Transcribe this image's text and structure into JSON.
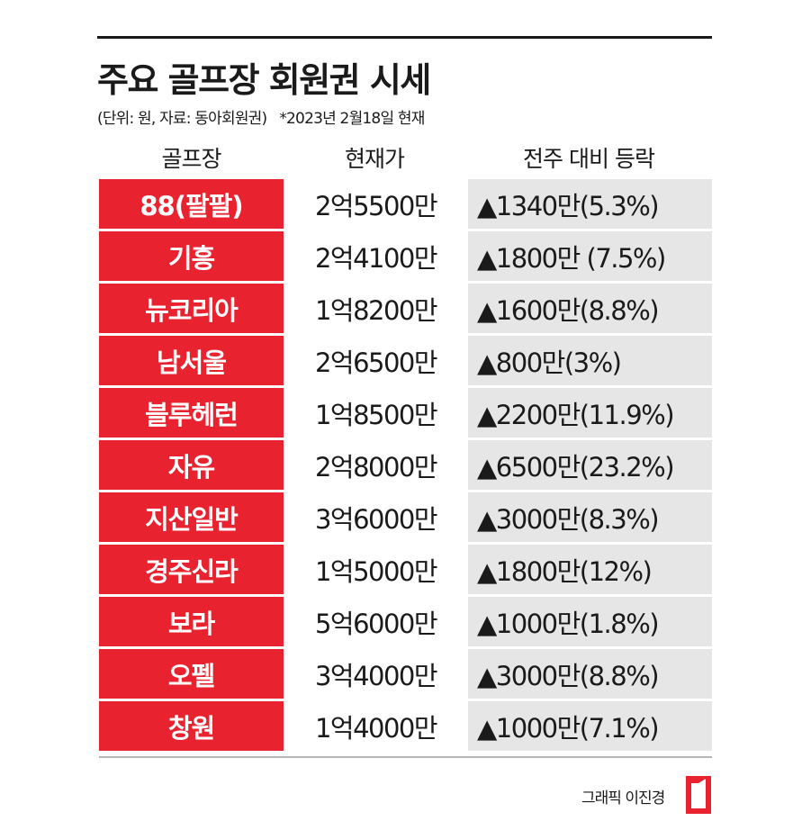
{
  "title": "주요 골프장 회원권 시세",
  "subtitle": "(단위: 원, 자료: 동아회원권)",
  "note": "*2023년 2월18일 현재",
  "headers": {
    "name": "골프장",
    "price": "현재가",
    "change": "전주 대비 등락"
  },
  "rows": [
    {
      "name": "88(팔팔)",
      "price": "2억5500만",
      "change": "▲1340만(5.3%)"
    },
    {
      "name": "기흥",
      "price": "2억4100만",
      "change": "▲1800만 (7.5%)"
    },
    {
      "name": "뉴코리아",
      "price": "1억8200만",
      "change": "▲1600만(8.8%)"
    },
    {
      "name": "남서울",
      "price": "2억6500만",
      "change": "▲800만(3%)"
    },
    {
      "name": "블루헤런",
      "price": "1억8500만",
      "change": "▲2200만(11.9%)"
    },
    {
      "name": "자유",
      "price": "2억8000만",
      "change": "▲6500만(23.2%)"
    },
    {
      "name": "지산일반",
      "price": "3억6000만",
      "change": "▲3000만(8.3%)"
    },
    {
      "name": "경주신라",
      "price": "1억5000만",
      "change": "▲1800만(12%)"
    },
    {
      "name": "보라",
      "price": "5억6000만",
      "change": "▲1000만(1.8%)"
    },
    {
      "name": "오펠",
      "price": "3억4000만",
      "change": "▲3000만(8.8%)"
    },
    {
      "name": "창원",
      "price": "1억4000만",
      "change": "▲1000만(7.1%)"
    }
  ],
  "credit": "그래픽 이진경",
  "colors": {
    "accent": "#e8232f",
    "change_bg": "#e6e6e6"
  }
}
